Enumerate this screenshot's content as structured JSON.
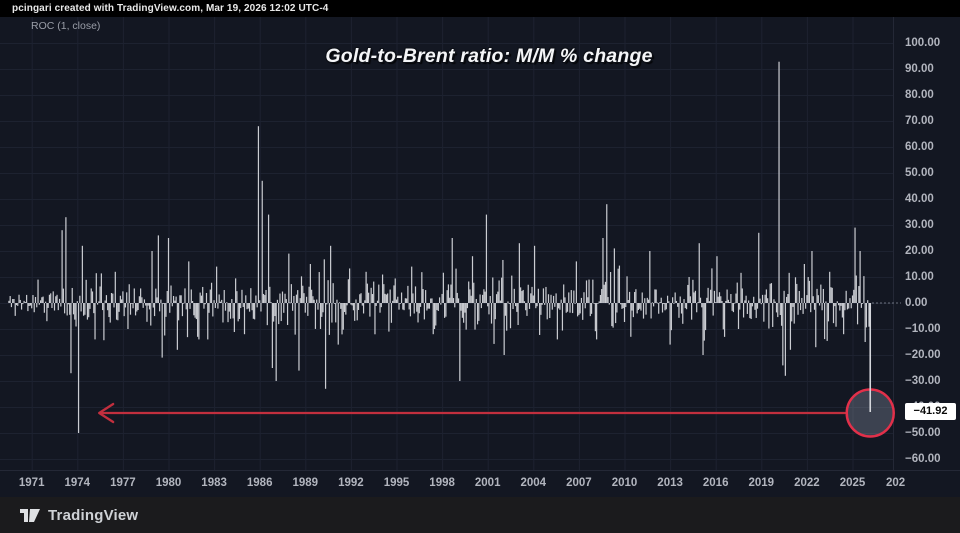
{
  "attribution": "pcingari created with TradingView.com, Mar 19, 2026 12:02 UTC-4",
  "indicator": {
    "label": "ROC (1, close)"
  },
  "title": "Gold-to-Brent ratio: M/M % change",
  "price_scale": {
    "ticks": [
      {
        "text": "100.00",
        "value": 100
      },
      {
        "text": "90.00",
        "value": 90
      },
      {
        "text": "80.00",
        "value": 80
      },
      {
        "text": "70.00",
        "value": 70
      },
      {
        "text": "60.00",
        "value": 60
      },
      {
        "text": "50.00",
        "value": 50
      },
      {
        "text": "40.00",
        "value": 40
      },
      {
        "text": "30.00",
        "value": 30
      },
      {
        "text": "20.00",
        "value": 20
      },
      {
        "text": "10.00",
        "value": 10
      },
      {
        "text": "0.00",
        "value": 0
      },
      {
        "text": "−10.00",
        "value": -10
      },
      {
        "text": "−20.00",
        "value": -20
      },
      {
        "text": "−30.00",
        "value": -30
      },
      {
        "text": "−40.00",
        "value": -40
      },
      {
        "text": "−50.00",
        "value": -50
      },
      {
        "text": "−60.00",
        "value": -60
      }
    ],
    "last_value_badge": {
      "text": "−41.92",
      "value": -41.92,
      "bg": "#ffffff",
      "fg": "#0a0a0a"
    }
  },
  "time_scale": {
    "year_labels": [
      1971,
      1974,
      1977,
      1980,
      1983,
      1986,
      1989,
      1992,
      1995,
      1998,
      2001,
      2004,
      2007,
      2010,
      2013,
      2016,
      2019,
      2022,
      2025
    ],
    "partial_last_label": "202"
  },
  "footer": {
    "brand": "TradingView"
  },
  "colors": {
    "background": "#131722",
    "topbar_bg": "#000000",
    "footer_bg": "#1b1b1d",
    "grid": "#1d2230",
    "separator": "#242836",
    "bar": "#d5d7dc",
    "axis_text": "#b2b5be",
    "arrow_red": "#c22f3e",
    "circle_red": "#e2304a",
    "circle_fill": "rgba(148,158,178,0.32)",
    "zero_line_dotted": "#8a8f9c",
    "badge_bg": "#ffffff"
  },
  "chart_data": {
    "type": "bar",
    "title": "Gold-to-Brent ratio: M/M % change",
    "series_name": "ROC (1, close)",
    "ylabel": "M/M % change",
    "frequency": "monthly",
    "grid": true,
    "x_range_years": [
      1969.5,
      2026.1667
    ],
    "x_tick_years": [
      1971,
      1974,
      1977,
      1980,
      1983,
      1986,
      1989,
      1992,
      1995,
      1998,
      2001,
      2004,
      2007,
      2010,
      2013,
      2016,
      2019,
      2022,
      2025
    ],
    "y_ticks": [
      100,
      90,
      80,
      70,
      60,
      50,
      40,
      30,
      20,
      10,
      0,
      -10,
      -20,
      -30,
      -40,
      -50,
      -60
    ],
    "ylim": [
      -64,
      110
    ],
    "last_value": -41.92,
    "key_points": [
      [
        1971.4,
        9
      ],
      [
        1972.0,
        -7
      ],
      [
        1973.0,
        28
      ],
      [
        1973.25,
        33
      ],
      [
        1973.6,
        -27
      ],
      [
        1974.05,
        -50
      ],
      [
        1974.35,
        22
      ],
      [
        1975.2,
        -14
      ],
      [
        1976.5,
        12
      ],
      [
        1977.3,
        -10
      ],
      [
        1978.9,
        20
      ],
      [
        1979.3,
        26
      ],
      [
        1979.6,
        -21
      ],
      [
        1980.0,
        25
      ],
      [
        1980.6,
        -18
      ],
      [
        1981.3,
        16
      ],
      [
        1982.0,
        -14
      ],
      [
        1983.2,
        14
      ],
      [
        1985.0,
        -12
      ],
      [
        1985.95,
        68
      ],
      [
        1986.2,
        47
      ],
      [
        1986.55,
        34
      ],
      [
        1986.8,
        -25
      ],
      [
        1987.05,
        -30
      ],
      [
        1987.9,
        19
      ],
      [
        1988.6,
        -26
      ],
      [
        1989.3,
        15
      ],
      [
        1990.3,
        -33
      ],
      [
        1990.65,
        22
      ],
      [
        1991.2,
        -16
      ],
      [
        1993.0,
        12
      ],
      [
        1994.5,
        -11
      ],
      [
        1996.0,
        14
      ],
      [
        1997.4,
        -12
      ],
      [
        1998.7,
        25
      ],
      [
        1999.2,
        -30
      ],
      [
        2000.0,
        18
      ],
      [
        2000.95,
        34
      ],
      [
        2002.1,
        -20
      ],
      [
        2003.1,
        23
      ],
      [
        2004.1,
        22
      ],
      [
        2005.6,
        -14
      ],
      [
        2006.8,
        16
      ],
      [
        2008.2,
        -14
      ],
      [
        2008.6,
        25
      ],
      [
        2008.85,
        38
      ],
      [
        2009.3,
        21
      ],
      [
        2010.4,
        -13
      ],
      [
        2011.7,
        20
      ],
      [
        2013.0,
        -16
      ],
      [
        2014.9,
        23
      ],
      [
        2015.15,
        -20
      ],
      [
        2016.1,
        18
      ],
      [
        2017.5,
        -10
      ],
      [
        2018.85,
        27
      ],
      [
        2020.16,
        92.8
      ],
      [
        2020.4,
        -24
      ],
      [
        2020.6,
        -28
      ],
      [
        2020.9,
        -18
      ],
      [
        2021.8,
        15
      ],
      [
        2022.3,
        20
      ],
      [
        2022.6,
        -17
      ],
      [
        2023.5,
        12
      ],
      [
        2024.4,
        -12
      ],
      [
        2025.16,
        29
      ],
      [
        2025.5,
        20
      ],
      [
        2025.8,
        -15
      ],
      [
        2026.1667,
        -41.92
      ]
    ],
    "noise_model": {
      "seed": 11,
      "volatility_by_period": [
        [
          1969.5,
          1973,
          3.5
        ],
        [
          1973,
          1976,
          8
        ],
        [
          1976,
          1980,
          5.5
        ],
        [
          1980,
          1983,
          8
        ],
        [
          1983,
          1986,
          5.5
        ],
        [
          1986,
          1988,
          7
        ],
        [
          1988,
          1992,
          8
        ],
        [
          1992,
          1998,
          6
        ],
        [
          1998,
          2003,
          8
        ],
        [
          2003,
          2008,
          6
        ],
        [
          2008,
          2010,
          8
        ],
        [
          2010,
          2015,
          6.5
        ],
        [
          2015,
          2017,
          8
        ],
        [
          2017,
          2020,
          6
        ],
        [
          2020,
          2021,
          8
        ],
        [
          2021,
          2025,
          7
        ],
        [
          2025,
          2026.25,
          7.5
        ]
      ]
    },
    "annotations": {
      "arrow": {
        "value": -41.92,
        "from_year": 2024.5,
        "to_year": 1975.9,
        "color": "#c22f3e"
      },
      "circle": {
        "year": 2026.1667,
        "value": -41.92,
        "radius_px": 23.5,
        "stroke": "#e2304a"
      },
      "zero_dotted_line": {
        "value": 0
      }
    }
  }
}
